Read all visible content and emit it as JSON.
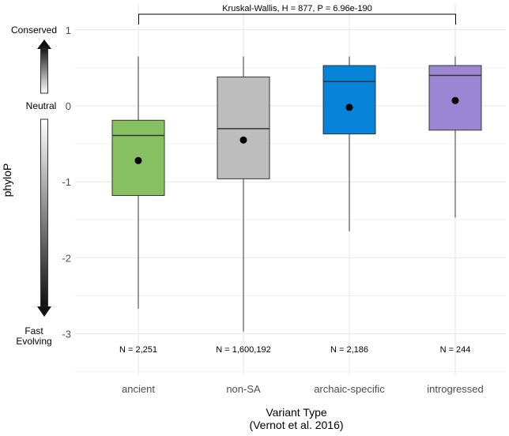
{
  "chart_data": {
    "type": "box",
    "ylabel": "phyloP",
    "xlabel_line1": "Variant Type",
    "xlabel_line2": "(Vernot et al. 2016)",
    "ylim": [
      -3.5,
      1.2
    ],
    "yticks": [
      1,
      0,
      -1,
      -2,
      -3
    ],
    "ytick_labels": [
      "1",
      "0",
      "-1",
      "-2",
      "-3"
    ],
    "grid": true,
    "categories": [
      "ancient",
      "non-SA",
      "archaic-specific",
      "introgressed"
    ],
    "boxes": [
      {
        "name": "ancient",
        "whisker_low": -2.67,
        "q1": -1.18,
        "median": -0.39,
        "q3": -0.19,
        "whisker_high": 0.65,
        "mean": -0.72,
        "color": "#86c061",
        "n_label": "N = 2,251"
      },
      {
        "name": "non-SA",
        "whisker_low": -2.97,
        "q1": -0.96,
        "median": -0.3,
        "q3": 0.38,
        "whisker_high": 0.65,
        "mean": -0.45,
        "color": "#bdbdbd",
        "n_label": "N = 1,600,192"
      },
      {
        "name": "archaic-specific",
        "whisker_low": -1.65,
        "q1": -0.37,
        "median": 0.32,
        "q3": 0.53,
        "whisker_high": 0.65,
        "mean": -0.02,
        "color": "#0683d8",
        "n_label": "N = 2,186"
      },
      {
        "name": "introgressed",
        "whisker_low": -1.47,
        "q1": -0.32,
        "median": 0.4,
        "q3": 0.53,
        "whisker_high": 0.65,
        "mean": 0.07,
        "color": "#9b86d4",
        "n_label": "N = 244"
      }
    ],
    "annotation": "Kruskal-Wallis, H = 877, P = 6.96e-190",
    "legend": {
      "top_label": "Conserved",
      "middle_label": "Neutral",
      "bottom_label_line1": "Fast",
      "bottom_label_line2": "Evolving"
    }
  }
}
